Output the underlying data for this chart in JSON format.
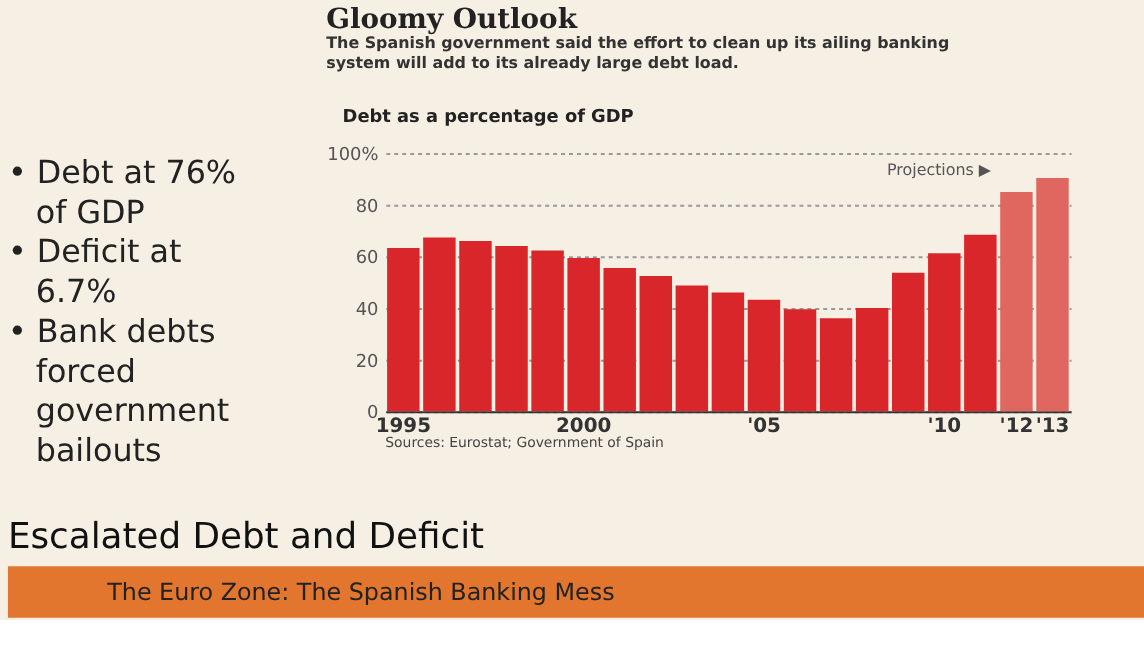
{
  "chart_data": {
    "type": "bar",
    "title": "Gloomy Outlook",
    "subtitle": "The Spanish government said the effort to clean up its ailing banking system will add to its already large debt load.",
    "ylabel": "Debt as a percentage of GDP",
    "categories": [
      "1995",
      null,
      null,
      null,
      null,
      "2000",
      null,
      null,
      null,
      null,
      "'05",
      null,
      null,
      null,
      null,
      "'10",
      null,
      "'12",
      "'13"
    ],
    "values": [
      63.2,
      67.3,
      66,
      64,
      62.3,
      59.4,
      55.5,
      52.4,
      48.7,
      46,
      43.2,
      39.5,
      36,
      40,
      53.7,
      61.2,
      68.4,
      84.9,
      90.4
    ],
    "colors": [
      "#d9262b",
      "#d9262b",
      "#d9262b",
      "#d9262b",
      "#d9262b",
      "#d9262b",
      "#d9262b",
      "#d9262b",
      "#d9262b",
      "#d9262b",
      "#d9262b",
      "#d9262b",
      "#d9262b",
      "#d9262b",
      "#d9262b",
      "#d9262b",
      "#d9262b",
      "#e0675f",
      "#e0675f"
    ],
    "ylim": [
      0,
      100
    ],
    "yticks": [
      0,
      20,
      40,
      60,
      80,
      {
        "value": 100,
        "label": "100%"
      }
    ],
    "grid": "y",
    "annotations": [
      "• Debt at 76% of GDP",
      "• Deficit at 6.7%",
      "• Bank debts forced government bailouts",
      "Escalated Debt and Deficit",
      "The Euro Zone: The Spanish Banking Mess",
      "Sources: Eurostat; Government of Spain",
      "Projections ▶"
    ]
  }
}
